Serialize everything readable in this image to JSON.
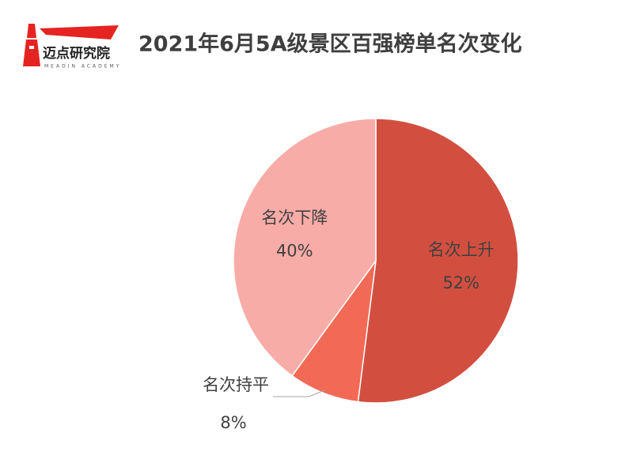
{
  "logo": {
    "name": "迈点研究院",
    "subtitle": "MEADIN ACADEMY"
  },
  "chart_data": {
    "type": "pie",
    "title": "2021年6月5A级景区百强榜单名次变化",
    "categories": [
      "名次上升",
      "名次持平",
      "名次下降"
    ],
    "values": [
      52,
      8,
      40
    ],
    "value_labels": [
      "52%",
      "8%",
      "40%"
    ],
    "colors": [
      "#d24f40",
      "#f26a55",
      "#f8aca7"
    ]
  }
}
